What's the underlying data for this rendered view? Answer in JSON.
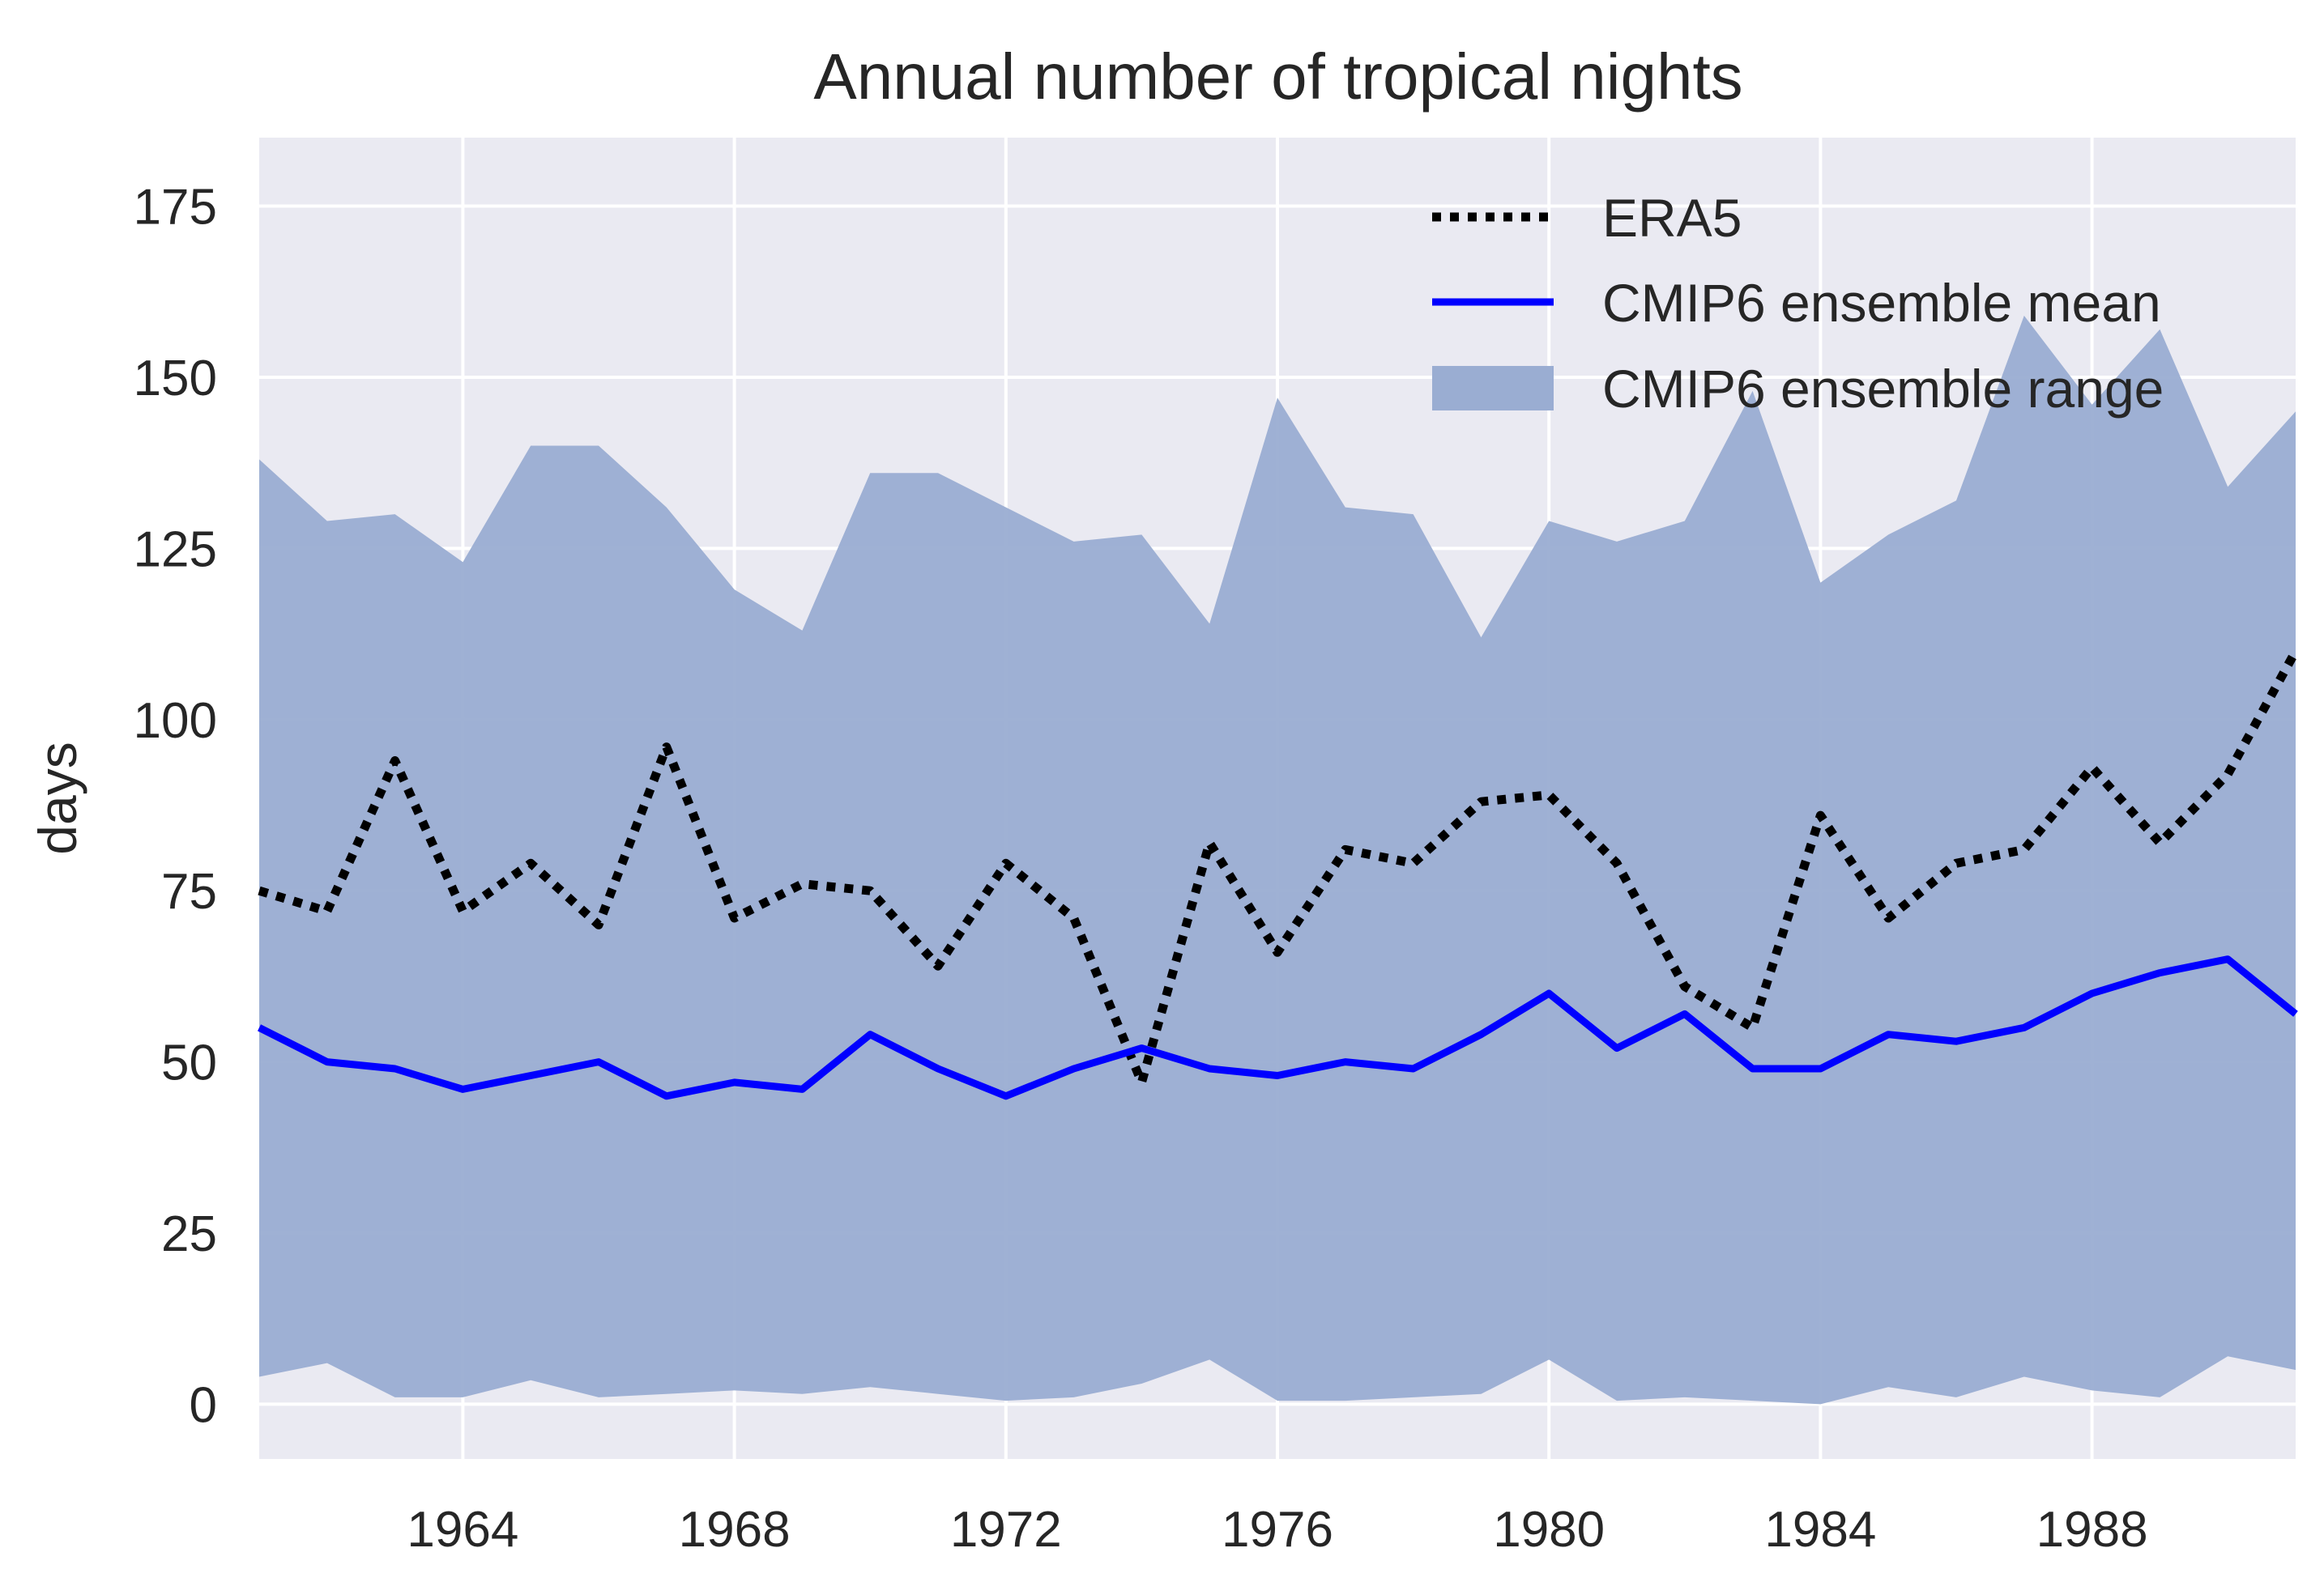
{
  "chart_data": {
    "type": "line",
    "title": "Annual number of tropical nights",
    "xlabel": "",
    "ylabel": "days",
    "xlim": [
      1961,
      1991
    ],
    "ylim": [
      -8,
      185
    ],
    "grid": true,
    "legend_position": "top-right",
    "x_ticks": [
      1964,
      1968,
      1972,
      1976,
      1980,
      1984,
      1988
    ],
    "y_ticks": [
      0,
      25,
      50,
      75,
      100,
      125,
      150,
      175
    ],
    "x": [
      1961,
      1962,
      1963,
      1964,
      1965,
      1966,
      1967,
      1968,
      1969,
      1970,
      1971,
      1972,
      1973,
      1974,
      1975,
      1976,
      1977,
      1978,
      1979,
      1980,
      1981,
      1982,
      1983,
      1984,
      1985,
      1986,
      1987,
      1988,
      1989,
      1990,
      1991
    ],
    "series": [
      {
        "name": "ERA5",
        "style": "dotted",
        "color": "#000000",
        "values": [
          75,
          72,
          94,
          72,
          79,
          70,
          96,
          71,
          76,
          75,
          64,
          79,
          71,
          47,
          82,
          66,
          81,
          79,
          88,
          89,
          79,
          61,
          55,
          86,
          71,
          79,
          81,
          93,
          82,
          92,
          110
        ]
      },
      {
        "name": "CMIP6 ensemble mean",
        "style": "solid",
        "color": "#0000ff",
        "values": [
          55,
          50,
          49,
          46,
          48,
          50,
          45,
          47,
          46,
          54,
          49,
          45,
          49,
          52,
          49,
          48,
          50,
          49,
          54,
          60,
          52,
          57,
          49,
          49,
          54,
          53,
          55,
          60,
          63,
          65,
          57
        ]
      }
    ],
    "band": {
      "name": "CMIP6 ensemble range",
      "color": "#9aadd2",
      "upper": [
        138,
        129,
        130,
        123,
        140,
        140,
        131,
        119,
        113,
        136,
        136,
        131,
        126,
        127,
        114,
        147,
        131,
        130,
        112,
        129,
        126,
        129,
        148,
        120,
        127,
        132,
        159,
        146,
        157,
        134,
        145
      ],
      "lower": [
        4,
        6,
        1,
        1,
        3.5,
        1,
        1.5,
        2,
        1.5,
        2.5,
        1.5,
        0.5,
        1,
        3,
        6.5,
        0.5,
        0.5,
        1,
        1.5,
        6.5,
        0.5,
        1,
        0.5,
        0,
        2.5,
        1,
        4,
        2,
        1,
        7,
        5
      ]
    },
    "legend": [
      "ERA5",
      "CMIP6 ensemble mean",
      "CMIP6 ensemble range"
    ]
  },
  "colors": {
    "plot_background": "#eaeaf2",
    "grid": "#ffffff",
    "text": "#262626"
  }
}
